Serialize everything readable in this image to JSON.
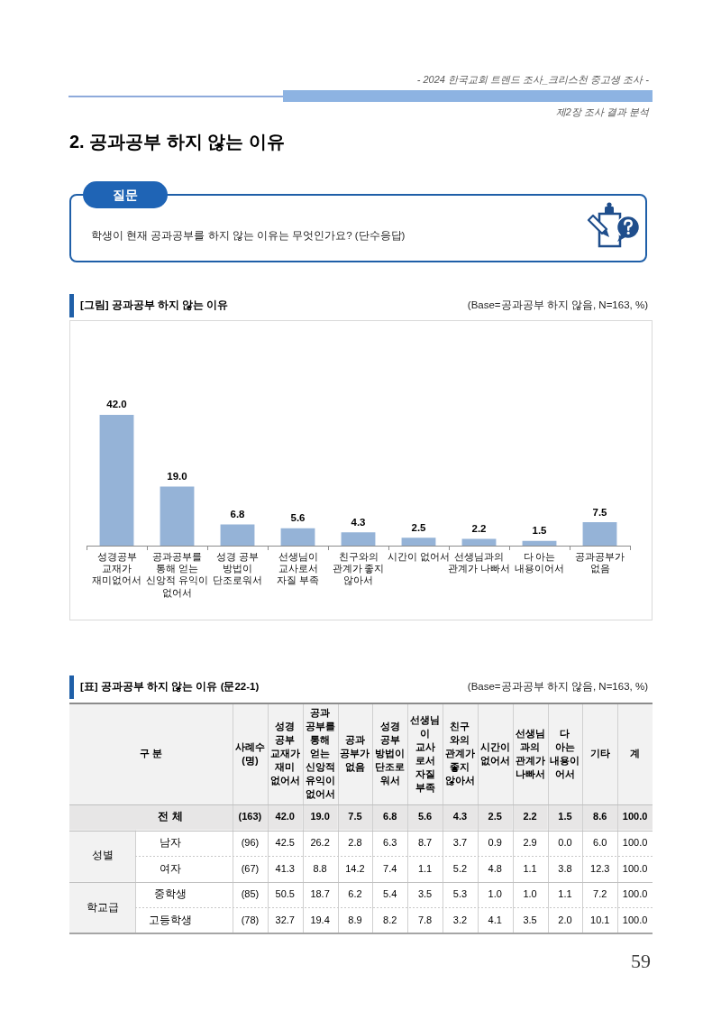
{
  "chart_data": [
    {
      "type": "bar",
      "title": "[그림] 공과공부 하지 않는 이유",
      "subtitle": "(Base=공과공부 하지 않음, N=163, %)",
      "categories": [
        "성경공부\n교재가\n재미없어서",
        "공과공부를\n통해 얻는\n신앙적 유익이\n없어서",
        "성경 공부\n방법이\n단조로워서",
        "선생님이\n교사로서\n자질 부족",
        "친구와의\n관계가 좋지\n않아서",
        "시간이 없어서",
        "선생님과의\n관계가 나빠서",
        "다 아는\n내용이어서",
        "공과공부가\n없음"
      ],
      "values": [
        42.0,
        19.0,
        6.8,
        5.6,
        4.3,
        2.5,
        2.2,
        1.5,
        7.5
      ],
      "value_labels": [
        "42.0",
        "19.0",
        "6.8",
        "5.6",
        "4.3",
        "2.5",
        "2.2",
        "1.5",
        "7.5"
      ],
      "color": "#95b3d7",
      "annotations": [
        "- 2024 한국교회 트렌드 조사_크리스천 중고생 조사 -",
        "제2장 조사 결과 분석",
        "2. 공과공부 하지 않는 이유",
        "질문",
        "학생이 현재 공과공부를 하지 않는 이유는 무엇인가요? (단수응답)"
      ]
    },
    {
      "type": "heatmap",
      "title": "[표] 공과공부 하지 않는 이유 (문22-1)",
      "subtitle": "(Base=공과공부 하지 않음, N=163, %)",
      "categories": [
        "사례수\n(명)",
        "성경\n공부\n교재가\n재미\n없어서",
        "공과\n공부를\n통해\n얻는\n신앙적\n유익이\n없어서",
        "공과\n공부가\n없음",
        "성경\n공부\n방법이\n단조로\n워서",
        "선생님\n이\n교사\n로서\n자질\n부족",
        "친구\n와의\n관계가\n좋지\n않아서",
        "시간이\n없어서",
        "선생님\n과의\n관계가\n나빠서",
        "다\n아는\n내용이\n어서",
        "기타",
        "계"
      ],
      "y_categories": [
        "전 체",
        "남자",
        "여자",
        "중학생",
        "고등학생"
      ],
      "cells": [
        [
          163,
          42.0,
          19.0,
          7.5,
          6.8,
          5.6,
          4.3,
          2.5,
          2.2,
          1.5,
          8.6,
          100.0
        ],
        [
          96,
          42.5,
          26.2,
          2.8,
          6.3,
          8.7,
          3.7,
          0.9,
          2.9,
          0.0,
          6.0,
          100.0
        ],
        [
          67,
          41.3,
          8.8,
          14.2,
          7.4,
          1.1,
          5.2,
          4.8,
          1.1,
          3.8,
          12.3,
          100.0
        ],
        [
          85,
          50.5,
          18.7,
          6.2,
          5.4,
          3.5,
          5.3,
          1.0,
          1.0,
          1.1,
          7.2,
          100.0
        ],
        [
          78,
          32.7,
          19.4,
          8.9,
          8.2,
          7.8,
          3.2,
          4.1,
          3.5,
          2.0,
          10.1,
          100.0
        ]
      ],
      "cell_labels": [
        [
          "(163)",
          "42.0",
          "19.0",
          "7.5",
          "6.8",
          "5.6",
          "4.3",
          "2.5",
          "2.2",
          "1.5",
          "8.6",
          "100.0"
        ],
        [
          "(96)",
          "42.5",
          "26.2",
          "2.8",
          "6.3",
          "8.7",
          "3.7",
          "0.9",
          "2.9",
          "0.0",
          "6.0",
          "100.0"
        ],
        [
          "(67)",
          "41.3",
          "8.8",
          "14.2",
          "7.4",
          "1.1",
          "5.2",
          "4.8",
          "1.1",
          "3.8",
          "12.3",
          "100.0"
        ],
        [
          "(85)",
          "50.5",
          "18.7",
          "6.2",
          "5.4",
          "3.5",
          "5.3",
          "1.0",
          "1.0",
          "1.1",
          "7.2",
          "100.0"
        ],
        [
          "(78)",
          "32.7",
          "19.4",
          "8.9",
          "8.2",
          "7.8",
          "3.2",
          "4.1",
          "3.5",
          "2.0",
          "10.1",
          "100.0"
        ]
      ],
      "annotations": [
        "구 분",
        "성별",
        "학교급",
        "59"
      ]
    }
  ]
}
